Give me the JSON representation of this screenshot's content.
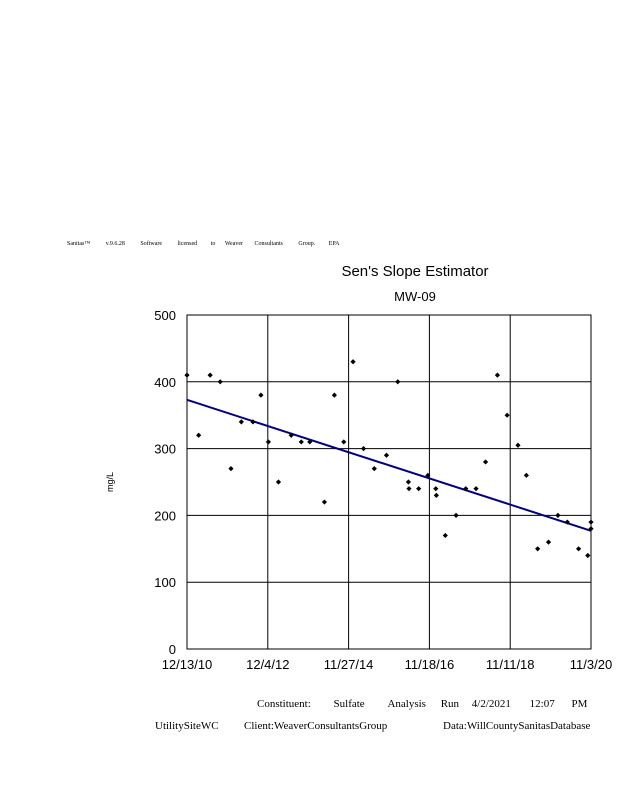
{
  "banner": [
    "Sanitas™",
    "v.9.6.28",
    "Software",
    "licensed",
    "to",
    "Weaver",
    "Consultants",
    "Group.",
    "EPA"
  ],
  "chart_data": {
    "type": "scatter",
    "title": "Sen's Slope Estimator",
    "subtitle": "MW-09",
    "ylabel": "mg/L",
    "xlabel": "",
    "ylim": [
      0,
      500
    ],
    "y_ticks": [
      0,
      100,
      200,
      300,
      400,
      500
    ],
    "xlim": [
      "2010-12-13",
      "2020-11-03"
    ],
    "x_tick_labels": [
      "12/13/10",
      "12/4/12",
      "11/27/14",
      "11/18/16",
      "11/11/18",
      "11/3/20"
    ],
    "grid": true,
    "series": [
      {
        "color": "#000000",
        "marker": "diamond",
        "points": [
          [
            "2010-12-13",
            410
          ],
          [
            "2011-03-27",
            320
          ],
          [
            "2011-07-08",
            410
          ],
          [
            "2011-10-06",
            400
          ],
          [
            "2012-01-10",
            270
          ],
          [
            "2012-04-12",
            340
          ],
          [
            "2012-07-25",
            340
          ],
          [
            "2012-10-04",
            380
          ],
          [
            "2012-12-10",
            310
          ],
          [
            "2013-03-10",
            250
          ],
          [
            "2013-07-02",
            320
          ],
          [
            "2013-09-30",
            310
          ],
          [
            "2013-12-15",
            310
          ],
          [
            "2014-04-25",
            220
          ],
          [
            "2014-07-23",
            380
          ],
          [
            "2014-10-15",
            310
          ],
          [
            "2015-01-06",
            430
          ],
          [
            "2015-04-10",
            300
          ],
          [
            "2015-07-15",
            270
          ],
          [
            "2015-11-01",
            290
          ],
          [
            "2016-02-10",
            400
          ],
          [
            "2016-05-15",
            250
          ],
          [
            "2016-05-20",
            240
          ],
          [
            "2016-08-15",
            240
          ],
          [
            "2016-11-05",
            260
          ],
          [
            "2017-01-15",
            240
          ],
          [
            "2017-01-20",
            230
          ],
          [
            "2017-04-10",
            170
          ],
          [
            "2017-07-15",
            200
          ],
          [
            "2017-10-10",
            240
          ],
          [
            "2018-01-10",
            240
          ],
          [
            "2018-04-05",
            280
          ],
          [
            "2018-07-20",
            410
          ],
          [
            "2018-10-15",
            350
          ],
          [
            "2019-01-20",
            305
          ],
          [
            "2019-04-05",
            260
          ],
          [
            "2019-07-15",
            150
          ],
          [
            "2019-10-20",
            160
          ],
          [
            "2020-01-12",
            200
          ],
          [
            "2020-04-05",
            190
          ],
          [
            "2020-07-15",
            150
          ],
          [
            "2020-10-05",
            140
          ],
          [
            "2021-01-10",
            190
          ],
          [
            "2021-03-20",
            180
          ]
        ]
      }
    ],
    "trend_line": {
      "color": "#000080",
      "points": [
        [
          "2010-12-13",
          373
        ],
        [
          "2020-11-03",
          177
        ]
      ]
    }
  },
  "footer": {
    "line1": [
      "Constituent:",
      "Sulfate",
      "Analysis",
      "Run",
      "4/2/2021",
      "12:07",
      "PM"
    ],
    "site": "UtilitySiteWC",
    "client": "Client:WeaverConsultantsGroup",
    "data": "Data:WillCountySanitasDatabase"
  }
}
